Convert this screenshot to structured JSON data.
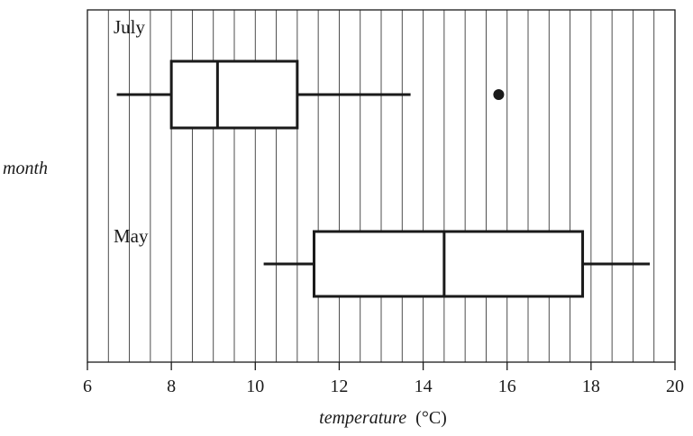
{
  "chart_data": {
    "type": "boxplot",
    "title": "",
    "xlabel_main": "temperature",
    "xlabel_unit": "(°C)",
    "ylabel": "month",
    "xlim": [
      6,
      20
    ],
    "x_ticks": [
      6,
      8,
      10,
      12,
      14,
      16,
      18,
      20
    ],
    "minor_grid_step": 0.5,
    "grid": true,
    "series": [
      {
        "name": "July",
        "whisker_low": 6.7,
        "q1": 8.0,
        "median": 9.1,
        "q3": 11.0,
        "whisker_high": 13.7,
        "outliers": [
          15.8
        ]
      },
      {
        "name": "May",
        "whisker_low": 10.2,
        "q1": 11.4,
        "median": 14.5,
        "q3": 17.8,
        "whisker_high": 19.4,
        "outliers": []
      }
    ]
  }
}
